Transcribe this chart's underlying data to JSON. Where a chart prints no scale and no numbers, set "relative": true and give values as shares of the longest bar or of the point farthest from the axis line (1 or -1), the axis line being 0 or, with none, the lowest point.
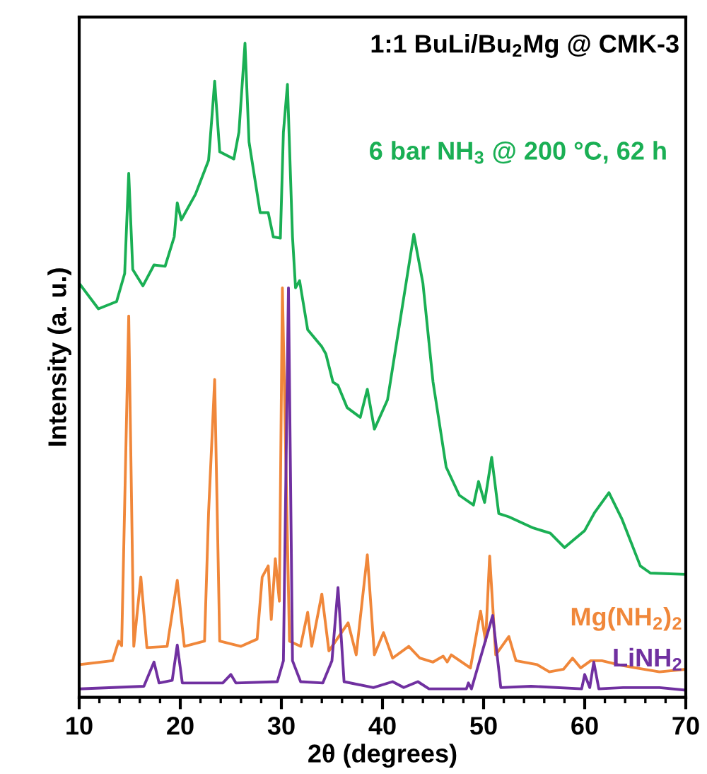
{
  "chart_data": {
    "type": "line",
    "relative": true,
    "xlabel": "2θ (degrees)",
    "ylabel": "Intensity (a. u.)",
    "annotations": [
      "1:1 BuLi/Bu$_{2}$Mg @ CMK-3"
    ],
    "xlim": [
      10,
      70
    ],
    "xticks": [
      10,
      20,
      30,
      40,
      50,
      60,
      70
    ],
    "grid": false,
    "legend": false,
    "marker": "none",
    "line_style": "solid",
    "series": [
      {
        "name": "6 bar NH$_{3}$ @ 200 °C, 62 h",
        "color": "#1aaf54",
        "x": [
          10,
          11.9,
          13.7,
          14.5,
          14.9,
          15.3,
          16.3,
          17.4,
          18.5,
          19.4,
          19.7,
          20.1,
          21.5,
          22.8,
          23.4,
          23.9,
          25.3,
          25.8,
          26.4,
          26.8,
          27.9,
          28.7,
          29.2,
          29.9,
          30.2,
          30.6,
          31.1,
          31.4,
          31.8,
          32.6,
          34.0,
          34.4,
          35.1,
          35.6,
          36.5,
          37.8,
          38.5,
          39.2,
          40.5,
          41.6,
          43.1,
          44.0,
          45.0,
          46.3,
          47.6,
          49.0,
          49.5,
          50.1,
          50.8,
          51.5,
          52.5,
          54.9,
          56.6,
          58.0,
          60.0,
          61.0,
          62.4,
          63.7,
          65.5,
          66.5,
          70
        ],
        "values": [
          0.633,
          0.594,
          0.605,
          0.648,
          0.801,
          0.654,
          0.629,
          0.661,
          0.659,
          0.704,
          0.756,
          0.73,
          0.769,
          0.821,
          0.942,
          0.834,
          0.823,
          0.864,
          1.0,
          0.849,
          0.741,
          0.741,
          0.704,
          0.702,
          0.864,
          0.937,
          0.704,
          0.626,
          0.637,
          0.562,
          0.536,
          0.525,
          0.482,
          0.477,
          0.443,
          0.428,
          0.471,
          0.41,
          0.455,
          0.562,
          0.708,
          0.633,
          0.482,
          0.352,
          0.309,
          0.294,
          0.33,
          0.298,
          0.367,
          0.281,
          0.276,
          0.259,
          0.251,
          0.229,
          0.255,
          0.283,
          0.313,
          0.272,
          0.201,
          0.19,
          0.188
        ]
      },
      {
        "name": "Mg(NH$_{2}$)$_{2}$",
        "color": "#f0873a",
        "x": [
          10,
          13.3,
          13.9,
          14.2,
          14.9,
          15.4,
          16.1,
          16.7,
          18.7,
          19.7,
          20.4,
          22.4,
          22.8,
          23.4,
          23.9,
          26.0,
          27.6,
          28.1,
          28.7,
          29.0,
          29.4,
          29.8,
          30.1,
          30.8,
          31.9,
          32.6,
          33.0,
          34.0,
          34.7,
          36.6,
          37.4,
          38.5,
          39.2,
          40.1,
          41.0,
          42.6,
          43.7,
          45.0,
          46.0,
          46.4,
          46.8,
          48.7,
          49.7,
          50.2,
          50.6,
          51.2,
          52.5,
          53.2,
          55.3,
          56.5,
          57.9,
          58.8,
          59.6,
          60.6,
          61.7,
          63.3,
          65.1,
          67.4,
          70
        ],
        "values": [
          0.05,
          0.056,
          0.086,
          0.079,
          0.583,
          0.078,
          0.184,
          0.076,
          0.078,
          0.179,
          0.078,
          0.086,
          0.283,
          0.486,
          0.086,
          0.078,
          0.089,
          0.184,
          0.201,
          0.119,
          0.212,
          0.147,
          0.626,
          0.086,
          0.078,
          0.13,
          0.078,
          0.158,
          0.071,
          0.114,
          0.065,
          0.218,
          0.065,
          0.099,
          0.06,
          0.078,
          0.06,
          0.054,
          0.063,
          0.054,
          0.065,
          0.045,
          0.132,
          0.086,
          0.216,
          0.065,
          0.093,
          0.056,
          0.05,
          0.039,
          0.043,
          0.06,
          0.045,
          0.056,
          0.056,
          0.05,
          0.045,
          0.039,
          0.043
        ]
      },
      {
        "name": "LiNH$_{2}$",
        "color": "#7030a0",
        "x": [
          10,
          16.4,
          17.4,
          17.9,
          19.2,
          19.7,
          20.2,
          24.2,
          25.0,
          25.5,
          29.6,
          30.2,
          30.7,
          31.1,
          31.9,
          34.1,
          35.0,
          35.6,
          36.2,
          39.1,
          41.0,
          42.1,
          43.5,
          44.6,
          48.3,
          48.5,
          48.8,
          50.9,
          51.7,
          54.7,
          59.7,
          60.0,
          60.5,
          60.9,
          61.4,
          63.8,
          67.4,
          70
        ],
        "values": [
          0.013,
          0.017,
          0.054,
          0.022,
          0.026,
          0.08,
          0.022,
          0.022,
          0.035,
          0.022,
          0.024,
          0.056,
          0.626,
          0.056,
          0.024,
          0.022,
          0.056,
          0.168,
          0.024,
          0.015,
          0.024,
          0.015,
          0.024,
          0.013,
          0.013,
          0.022,
          0.013,
          0.125,
          0.015,
          0.017,
          0.013,
          0.035,
          0.015,
          0.054,
          0.013,
          0.015,
          0.015,
          0.011
        ]
      }
    ]
  }
}
